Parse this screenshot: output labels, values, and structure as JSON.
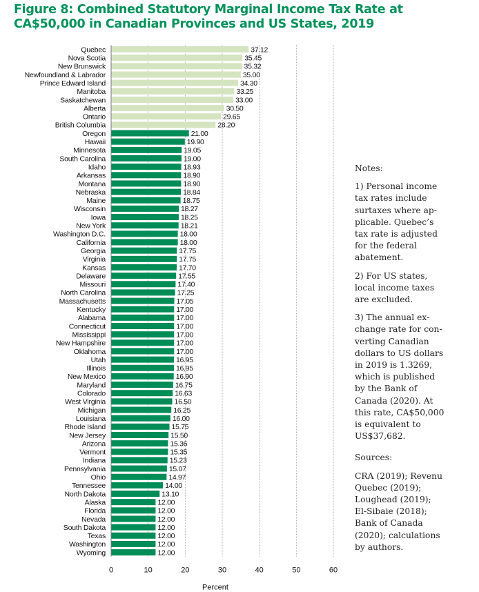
{
  "title": "Figure 8: Combined Statutory Marginal Income Tax Rate at CA$50,000 in Canadian Provinces and US States, 2019",
  "colors": {
    "canada": "#d5e4c0",
    "us": "#008c57",
    "title": "#00915a",
    "grid": "#9a9a9a"
  },
  "chart_data": {
    "type": "bar",
    "orientation": "horizontal",
    "title": "Figure 8: Combined Statutory Marginal Income Tax Rate at CA$50,000 in Canadian Provinces and US States, 2019",
    "xlabel": "Percent",
    "ylabel": "",
    "xlim": [
      0,
      60
    ],
    "xticks": [
      0,
      10,
      20,
      30,
      40,
      50,
      60
    ],
    "grid": "vertical dashed",
    "categories": [
      "Quebec",
      "Nova Scotia",
      "New Brunswick",
      "Newfoundland & Labrador",
      "Prince Edward Island",
      "Manitoba",
      "Saskatchewan",
      "Alberta",
      "Ontario",
      "British Columbia",
      "Oregon",
      "Hawaii",
      "Minnesota",
      "South Carolina",
      "Idaho",
      "Arkansas",
      "Montana",
      "Nebraska",
      "Maine",
      "Wisconsin",
      "Iowa",
      "New York",
      "Washington D.C.",
      "California",
      "Georgia",
      "Virginia",
      "Kansas",
      "Delaware",
      "Missouri",
      "North Carolina",
      "Massachusetts",
      "Kentucky",
      "Alabama",
      "Connecticut",
      "Mississippi",
      "New Hampshire",
      "Oklahoma",
      "Utah",
      "Illinois",
      "New Mexico",
      "Maryland",
      "Colorado",
      "West Virginia",
      "Michigan",
      "Louisiana",
      "Rhode Island",
      "New Jersey",
      "Arizona",
      "Vermont",
      "Indiana",
      "Pennsylvania",
      "Ohio",
      "Tennessee",
      "North Dakota",
      "Alaska",
      "Florida",
      "Nevada",
      "South Dakota",
      "Texas",
      "Washington",
      "Wyoming"
    ],
    "values": [
      37.12,
      35.45,
      35.32,
      35.0,
      34.3,
      33.25,
      33.0,
      30.5,
      29.65,
      28.2,
      21.0,
      19.9,
      19.05,
      19.0,
      18.93,
      18.9,
      18.9,
      18.84,
      18.75,
      18.27,
      18.25,
      18.21,
      18.0,
      18.0,
      17.75,
      17.75,
      17.7,
      17.55,
      17.4,
      17.25,
      17.05,
      17.0,
      17.0,
      17.0,
      17.0,
      17.0,
      17.0,
      16.95,
      16.95,
      16.9,
      16.75,
      16.63,
      16.5,
      16.25,
      16.0,
      15.75,
      15.5,
      15.36,
      15.35,
      15.23,
      15.07,
      14.97,
      14.0,
      13.1,
      12.0,
      12.0,
      12.0,
      12.0,
      12.0,
      12.0,
      12.0
    ],
    "labels": [
      "37.12",
      "35.45",
      "35.32",
      "35.00",
      "34.30",
      "33.25",
      "33.00",
      "30.50",
      "29.65",
      "28.20",
      "21.00",
      "19.90",
      "19.05",
      "19.00",
      "18.93",
      "18.90",
      "18.90",
      "18.84",
      "18.75",
      "18.27",
      "18.25",
      "18.21",
      "18.00",
      "18.00",
      "17.75",
      "17.75",
      "17.70",
      "17.55",
      "17.40",
      "17.25",
      "17.05",
      "17.00",
      "17.00",
      "17.00",
      "17.00",
      "17.00",
      "17.00",
      "16.95",
      "16.95",
      "16.90",
      "16.75",
      "16.63",
      "16.50",
      "16.25",
      "16.00",
      "15.75",
      "15.50",
      "15.36",
      "15.35",
      "15.23",
      "15.07",
      "14.97",
      "14.00",
      "13.10",
      "12.00",
      "12.00",
      "12.00",
      "12.00",
      "12.00",
      "12.00",
      "12.00"
    ],
    "groups": [
      "canada",
      "canada",
      "canada",
      "canada",
      "canada",
      "canada",
      "canada",
      "canada",
      "canada",
      "canada",
      "us",
      "us",
      "us",
      "us",
      "us",
      "us",
      "us",
      "us",
      "us",
      "us",
      "us",
      "us",
      "us",
      "us",
      "us",
      "us",
      "us",
      "us",
      "us",
      "us",
      "us",
      "us",
      "us",
      "us",
      "us",
      "us",
      "us",
      "us",
      "us",
      "us",
      "us",
      "us",
      "us",
      "us",
      "us",
      "us",
      "us",
      "us",
      "us",
      "us",
      "us",
      "us",
      "us",
      "us",
      "us",
      "us",
      "us",
      "us",
      "us",
      "us",
      "us"
    ]
  },
  "notes": {
    "heading": "Notes:",
    "items": [
      [
        "1) Personal income",
        "tax rates include",
        "surtaxes where ap-",
        "plicable. Quebec’s",
        "tax rate is adjusted",
        "for the federal",
        "abatement."
      ],
      [
        "2) For US states,",
        "local income taxes",
        "are excluded."
      ],
      [
        "3) The annual ex-",
        "change rate for con-",
        "verting Canadian",
        "dollars to US dollars",
        "in 2019 is 1.3269,",
        "which is published",
        "by the Bank of",
        "Canada (2020). At",
        "this rate, CA$50,000",
        "is equivalent to",
        "US$37,682."
      ]
    ]
  },
  "sources": {
    "heading": "Sources:",
    "lines": [
      "CRA (2019); Revenu",
      "Quebec (2019);",
      "Loughead (2019);",
      "El-Sibaie (2018);",
      "Bank of Canada",
      "(2020); calculations",
      "by authors."
    ]
  }
}
